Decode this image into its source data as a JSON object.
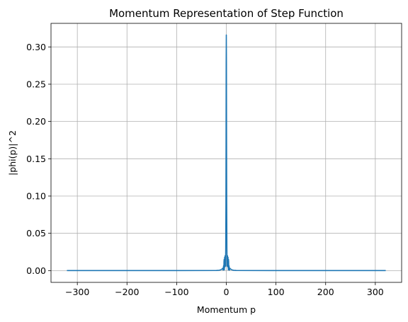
{
  "chart_data": {
    "type": "line",
    "title": "Momentum Representation of Step Function",
    "xlabel": "Momentum p",
    "ylabel": "|phi(p)|^2",
    "xlim": [
      -353,
      353
    ],
    "ylim": [
      -0.0158,
      0.3316
    ],
    "xticks": [
      -300,
      -200,
      -100,
      0,
      100,
      200,
      300
    ],
    "xtick_labels": [
      "−300",
      "−200",
      "−100",
      "0",
      "100",
      "200",
      "300"
    ],
    "yticks": [
      0.0,
      0.05,
      0.1,
      0.15,
      0.2,
      0.25,
      0.3
    ],
    "ytick_labels": [
      "0.00",
      "0.05",
      "0.10",
      "0.15",
      "0.20",
      "0.25",
      "0.30"
    ],
    "grid": true,
    "series": [
      {
        "color": "#1f77b4",
        "x": [
          -321,
          -100,
          -20,
          -15,
          -12,
          -10,
          -8,
          -7,
          -6.5,
          -6,
          -5.5,
          -5,
          -4.7,
          -4.4,
          -4.2,
          -4,
          -3.7,
          -3.4,
          -3.1,
          -2.8,
          -2.4,
          -2,
          -1.6,
          -1.2,
          -0.8,
          -0.5,
          -0.25,
          0,
          0.25,
          0.5,
          0.8,
          1.2,
          1.6,
          2,
          2.4,
          2.8,
          3.1,
          3.4,
          3.7,
          4,
          4.2,
          4.4,
          4.7,
          5,
          5.5,
          6,
          6.5,
          7,
          8,
          10,
          12,
          15,
          20,
          100,
          321
        ],
        "y": [
          0.0,
          0.0,
          0.0002,
          0.0004,
          0.0008,
          0.0015,
          0.0025,
          0.0032,
          0.0005,
          0.0035,
          0.0065,
          0.0012,
          0.012,
          0.015,
          0.003,
          0.001,
          0.01,
          0.018,
          0.012,
          0.005,
          0.02,
          0.015,
          0.006,
          0.03,
          0.09,
          0.18,
          0.28,
          0.316,
          0.28,
          0.18,
          0.09,
          0.03,
          0.006,
          0.015,
          0.02,
          0.005,
          0.012,
          0.018,
          0.01,
          0.001,
          0.003,
          0.015,
          0.012,
          0.0012,
          0.0065,
          0.0035,
          0.0005,
          0.0032,
          0.0025,
          0.0015,
          0.0008,
          0.0004,
          0.0002,
          0.0,
          0.0
        ]
      }
    ]
  }
}
